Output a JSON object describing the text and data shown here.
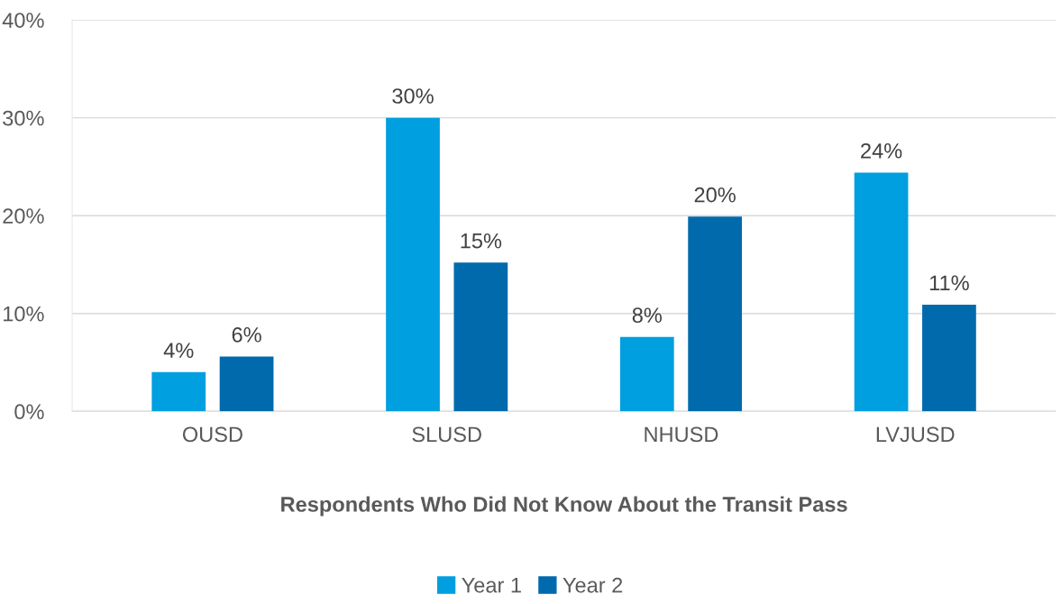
{
  "chart_data": {
    "type": "bar",
    "xlabel": "Respondents Who Did Not Know About the Transit Pass",
    "categories": [
      "OUSD",
      "SLUSD",
      "NHUSD",
      "LVJUSD"
    ],
    "series": [
      {
        "name": "Year 1",
        "color": "#009fdf",
        "values": [
          4,
          30,
          7.6,
          24.4
        ],
        "value_labels": [
          "4%",
          "30%",
          "8%",
          "24%"
        ]
      },
      {
        "name": "Year 2",
        "color": "#006aad",
        "values": [
          5.6,
          15.2,
          19.9,
          10.9
        ],
        "value_labels": [
          "6%",
          "15%",
          "20%",
          "11%"
        ]
      }
    ],
    "ylim": [
      0,
      40
    ],
    "yticks": [
      {
        "value": 0,
        "label": "0%"
      },
      {
        "value": 10,
        "label": "10%"
      },
      {
        "value": 20,
        "label": "20%"
      },
      {
        "value": 30,
        "label": "30%"
      },
      {
        "value": 40,
        "label": "40%"
      }
    ],
    "grid": "y",
    "legend": "bottom"
  }
}
